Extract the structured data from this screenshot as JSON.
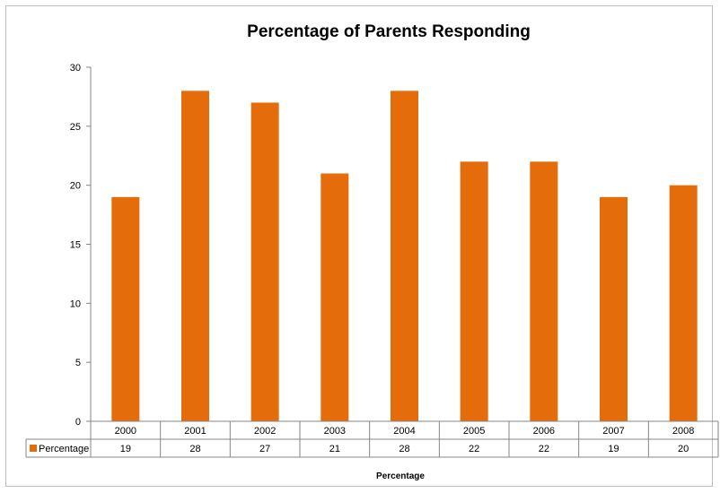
{
  "chart_data": {
    "type": "bar",
    "title": "Percentage of Parents Responding",
    "xlabel": "Percentage",
    "ylabel": "",
    "categories": [
      "2000",
      "2001",
      "2002",
      "2003",
      "2004",
      "2005",
      "2006",
      "2007",
      "2008"
    ],
    "series": [
      {
        "name": "Percentage",
        "values": [
          19,
          28,
          27,
          21,
          28,
          22,
          22,
          19,
          20
        ],
        "color": "#E46C0A"
      }
    ],
    "ylim": [
      0,
      30
    ],
    "yticks": [
      "0",
      "5",
      "10",
      "15",
      "20",
      "25",
      "30"
    ],
    "grid": false,
    "legend": "data-table-left"
  }
}
